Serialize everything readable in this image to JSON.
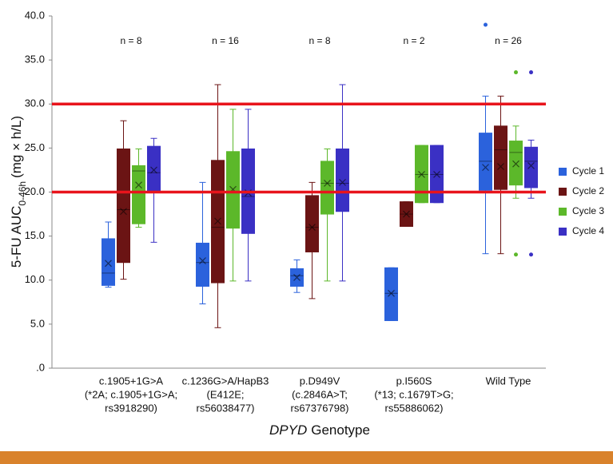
{
  "chart_data": {
    "type": "box",
    "ylabel": "5-FU AUC",
    "ylabel_sub": "0-46h",
    "ylabel_unit": "(mg × h/L)",
    "xlabel_italic": "DPYD",
    "xlabel": "Genotype",
    "categories": [
      [
        "c.1905+1G>A",
        "(*2A; c.1905+1G>A;",
        "rs3918290)"
      ],
      [
        "c.1236G>A/HapB3",
        "(E412E;",
        "rs56038477)"
      ],
      [
        "p.D949V",
        "(c.2846A>T;",
        "rs67376798)"
      ],
      [
        "p.I560S",
        "(*13; c.1679T>G;",
        "rs55886062)"
      ],
      [
        "Wild Type"
      ]
    ],
    "annotations": [
      "n = 8",
      "n = 16",
      "n = 8",
      "n = 2",
      "n = 26"
    ],
    "ylim": [
      0,
      40
    ],
    "yticks": [
      {
        "value": 0,
        "label": ".0"
      },
      {
        "value": 5,
        "label": "5.0"
      },
      {
        "value": 10,
        "label": "10.0"
      },
      {
        "value": 15,
        "label": "15.0"
      },
      {
        "value": 20,
        "label": "20.0"
      },
      {
        "value": 25,
        "label": "25.0"
      },
      {
        "value": 30,
        "label": "30.0"
      },
      {
        "value": 35,
        "label": "35.0"
      },
      {
        "value": 40,
        "label": "40.0"
      }
    ],
    "hlines": [
      30,
      20
    ],
    "hline_color": "#e8141c",
    "legend": "right",
    "series": [
      {
        "name": "Cycle 1",
        "color": "#2b62dc",
        "boxes": [
          {
            "min": 9.2,
            "q1": 9.4,
            "median": 10.8,
            "q3": 14.7,
            "max": 16.6,
            "mean": 11.9,
            "outliers": []
          },
          {
            "min": 7.3,
            "q1": 9.3,
            "median": 12.0,
            "q3": 14.2,
            "max": 21.1,
            "mean": 12.2,
            "outliers": []
          },
          {
            "min": 8.6,
            "q1": 9.3,
            "median": 10.5,
            "q3": 11.3,
            "max": 12.3,
            "mean": 10.3,
            "outliers": []
          },
          {
            "min": 5.4,
            "q1": 5.4,
            "median": 8.5,
            "q3": 11.4,
            "max": 11.4,
            "mean": 8.5,
            "outliers": []
          },
          {
            "min": 13.0,
            "q1": 20.2,
            "median": 23.5,
            "q3": 26.7,
            "max": 30.9,
            "mean": 22.8,
            "outliers": [
              39.0
            ]
          }
        ]
      },
      {
        "name": "Cycle 2",
        "color": "#6b1414",
        "boxes": [
          {
            "min": 10.1,
            "q1": 12.0,
            "median": 18.0,
            "q3": 24.9,
            "max": 28.1,
            "mean": 17.8,
            "outliers": []
          },
          {
            "min": 4.6,
            "q1": 9.7,
            "median": 16.0,
            "q3": 23.6,
            "max": 32.2,
            "mean": 16.7,
            "outliers": []
          },
          {
            "min": 7.9,
            "q1": 13.2,
            "median": 16.0,
            "q3": 19.6,
            "max": 21.1,
            "mean": 16.0,
            "outliers": []
          },
          {
            "min": 16.1,
            "q1": 16.1,
            "median": 17.5,
            "q3": 18.9,
            "max": 18.9,
            "mean": 17.5,
            "outliers": []
          },
          {
            "min": 13.0,
            "q1": 20.3,
            "median": 24.8,
            "q3": 27.5,
            "max": 30.9,
            "mean": 22.9,
            "outliers": []
          }
        ]
      },
      {
        "name": "Cycle 3",
        "color": "#5cb82a",
        "boxes": [
          {
            "min": 16.0,
            "q1": 16.4,
            "median": 22.4,
            "q3": 23.0,
            "max": 24.9,
            "mean": 20.8,
            "outliers": []
          },
          {
            "min": 9.9,
            "q1": 15.9,
            "median": 20.0,
            "q3": 24.6,
            "max": 29.4,
            "mean": 20.3,
            "outliers": []
          },
          {
            "min": 9.9,
            "q1": 17.5,
            "median": 21.0,
            "q3": 23.5,
            "max": 24.9,
            "mean": 21.0,
            "outliers": []
          },
          {
            "min": 18.8,
            "q1": 18.8,
            "median": 22.0,
            "q3": 25.3,
            "max": 25.3,
            "mean": 22.0,
            "outliers": []
          },
          {
            "min": 19.3,
            "q1": 20.8,
            "median": 24.5,
            "q3": 25.8,
            "max": 27.5,
            "mean": 23.2,
            "outliers": [
              33.6,
              12.9
            ]
          }
        ]
      },
      {
        "name": "Cycle 4",
        "color": "#3a30c4",
        "boxes": [
          {
            "min": 14.3,
            "q1": 20.0,
            "median": 22.2,
            "q3": 25.2,
            "max": 26.1,
            "mean": 22.5,
            "outliers": []
          },
          {
            "min": 9.9,
            "q1": 15.3,
            "median": 19.5,
            "q3": 24.9,
            "max": 29.4,
            "mean": 19.9,
            "outliers": []
          },
          {
            "min": 9.9,
            "q1": 17.8,
            "median": 21.0,
            "q3": 24.9,
            "max": 32.2,
            "mean": 21.1,
            "outliers": []
          },
          {
            "min": 18.8,
            "q1": 18.8,
            "median": 22.0,
            "q3": 25.3,
            "max": 25.3,
            "mean": 22.0,
            "outliers": []
          },
          {
            "min": 19.3,
            "q1": 20.5,
            "median": 23.5,
            "q3": 25.1,
            "max": 25.9,
            "mean": 23.0,
            "outliers": [
              33.6,
              12.9
            ]
          }
        ]
      }
    ]
  }
}
